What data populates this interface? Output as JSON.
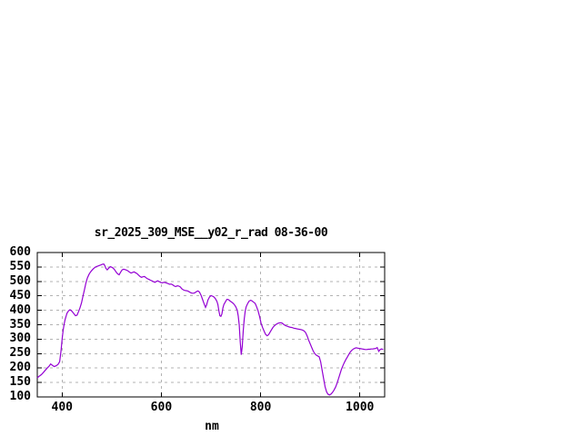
{
  "chart_data": {
    "type": "line",
    "title": "sr_2025_309_MSE__y02_r_rad 08-36-00",
    "xlabel": "nm",
    "ylabel": "",
    "xlim": [
      350,
      1050
    ],
    "ylim": [
      100,
      600
    ],
    "x_ticks": [
      400,
      600,
      800,
      1000
    ],
    "y_ticks": [
      100,
      150,
      200,
      250,
      300,
      350,
      400,
      450,
      500,
      550,
      600
    ],
    "grid": true,
    "legend": "none",
    "line_color": "#9400d3",
    "grid_color": "#b3b3b3",
    "frame_color": "#000000",
    "background_color": "#ffffff",
    "series": [
      {
        "points": [
          [
            350,
            166
          ],
          [
            354,
            172
          ],
          [
            358,
            177
          ],
          [
            362,
            184
          ],
          [
            366,
            192
          ],
          [
            370,
            200
          ],
          [
            374,
            207
          ],
          [
            377,
            214
          ],
          [
            380,
            210
          ],
          [
            384,
            205
          ],
          [
            388,
            208
          ],
          [
            392,
            213
          ],
          [
            395,
            222
          ],
          [
            398,
            262
          ],
          [
            400,
            300
          ],
          [
            402,
            330
          ],
          [
            404,
            352
          ],
          [
            406,
            368
          ],
          [
            408,
            380
          ],
          [
            410,
            390
          ],
          [
            413,
            398
          ],
          [
            416,
            402
          ],
          [
            419,
            398
          ],
          [
            423,
            390
          ],
          [
            427,
            381
          ],
          [
            430,
            383
          ],
          [
            433,
            395
          ],
          [
            436,
            408
          ],
          [
            439,
            425
          ],
          [
            442,
            448
          ],
          [
            445,
            470
          ],
          [
            448,
            495
          ],
          [
            451,
            512
          ],
          [
            454,
            524
          ],
          [
            457,
            532
          ],
          [
            460,
            538
          ],
          [
            463,
            544
          ],
          [
            466,
            548
          ],
          [
            469,
            551
          ],
          [
            472,
            553
          ],
          [
            475,
            555
          ],
          [
            478,
            557
          ],
          [
            481,
            559
          ],
          [
            484,
            560
          ],
          [
            486,
            555
          ],
          [
            488,
            546
          ],
          [
            491,
            540
          ],
          [
            494,
            546
          ],
          [
            497,
            551
          ],
          [
            500,
            549
          ],
          [
            503,
            546
          ],
          [
            506,
            540
          ],
          [
            509,
            532
          ],
          [
            512,
            526
          ],
          [
            515,
            523
          ],
          [
            518,
            532
          ],
          [
            521,
            540
          ],
          [
            524,
            542
          ],
          [
            527,
            541
          ],
          [
            530,
            539
          ],
          [
            533,
            536
          ],
          [
            536,
            532
          ],
          [
            539,
            529
          ],
          [
            542,
            531
          ],
          [
            545,
            533
          ],
          [
            548,
            530
          ],
          [
            551,
            527
          ],
          [
            554,
            522
          ],
          [
            557,
            517
          ],
          [
            560,
            514
          ],
          [
            563,
            516
          ],
          [
            566,
            517
          ],
          [
            569,
            513
          ],
          [
            572,
            509
          ],
          [
            575,
            507
          ],
          [
            578,
            504
          ],
          [
            581,
            502
          ],
          [
            584,
            499
          ],
          [
            587,
            497
          ],
          [
            590,
            500
          ],
          [
            593,
            502
          ],
          [
            596,
            499
          ],
          [
            599,
            496
          ],
          [
            602,
            495
          ],
          [
            605,
            497
          ],
          [
            608,
            496
          ],
          [
            611,
            494
          ],
          [
            614,
            492
          ],
          [
            617,
            490
          ],
          [
            620,
            491
          ],
          [
            623,
            488
          ],
          [
            626,
            484
          ],
          [
            629,
            482
          ],
          [
            632,
            485
          ],
          [
            635,
            484
          ],
          [
            638,
            481
          ],
          [
            641,
            475
          ],
          [
            644,
            471
          ],
          [
            647,
            469
          ],
          [
            650,
            468
          ],
          [
            653,
            467
          ],
          [
            656,
            464
          ],
          [
            659,
            461
          ],
          [
            662,
            459
          ],
          [
            665,
            459
          ],
          [
            668,
            461
          ],
          [
            671,
            465
          ],
          [
            674,
            467
          ],
          [
            677,
            463
          ],
          [
            680,
            452
          ],
          [
            683,
            438
          ],
          [
            686,
            423
          ],
          [
            689,
            410
          ],
          [
            691,
            418
          ],
          [
            694,
            436
          ],
          [
            697,
            446
          ],
          [
            700,
            451
          ],
          [
            703,
            449
          ],
          [
            706,
            446
          ],
          [
            709,
            440
          ],
          [
            712,
            431
          ],
          [
            714,
            420
          ],
          [
            716,
            398
          ],
          [
            718,
            381
          ],
          [
            720,
            379
          ],
          [
            722,
            387
          ],
          [
            724,
            408
          ],
          [
            726,
            420
          ],
          [
            729,
            429
          ],
          [
            732,
            438
          ],
          [
            735,
            437
          ],
          [
            738,
            433
          ],
          [
            741,
            429
          ],
          [
            744,
            425
          ],
          [
            747,
            420
          ],
          [
            750,
            412
          ],
          [
            753,
            400
          ],
          [
            755,
            380
          ],
          [
            757,
            348
          ],
          [
            759,
            290
          ],
          [
            761,
            246
          ],
          [
            763,
            275
          ],
          [
            765,
            330
          ],
          [
            767,
            370
          ],
          [
            769,
            398
          ],
          [
            771,
            412
          ],
          [
            774,
            424
          ],
          [
            777,
            432
          ],
          [
            780,
            435
          ],
          [
            783,
            432
          ],
          [
            786,
            428
          ],
          [
            789,
            424
          ],
          [
            792,
            412
          ],
          [
            795,
            398
          ],
          [
            798,
            378
          ],
          [
            801,
            355
          ],
          [
            804,
            340
          ],
          [
            807,
            328
          ],
          [
            810,
            317
          ],
          [
            813,
            312
          ],
          [
            816,
            315
          ],
          [
            819,
            324
          ],
          [
            822,
            333
          ],
          [
            825,
            341
          ],
          [
            828,
            347
          ],
          [
            831,
            351
          ],
          [
            834,
            354
          ],
          [
            837,
            356
          ],
          [
            840,
            357
          ],
          [
            843,
            356
          ],
          [
            846,
            352
          ],
          [
            849,
            348
          ],
          [
            852,
            346
          ],
          [
            855,
            344
          ],
          [
            858,
            342
          ],
          [
            861,
            341
          ],
          [
            864,
            340
          ],
          [
            867,
            338
          ],
          [
            870,
            337
          ],
          [
            873,
            336
          ],
          [
            876,
            335
          ],
          [
            879,
            334
          ],
          [
            882,
            333
          ],
          [
            885,
            331
          ],
          [
            888,
            328
          ],
          [
            891,
            322
          ],
          [
            894,
            310
          ],
          [
            897,
            296
          ],
          [
            900,
            284
          ],
          [
            903,
            271
          ],
          [
            906,
            259
          ],
          [
            909,
            250
          ],
          [
            912,
            245
          ],
          [
            915,
            242
          ],
          [
            918,
            239
          ],
          [
            921,
            222
          ],
          [
            924,
            193
          ],
          [
            927,
            163
          ],
          [
            930,
            135
          ],
          [
            933,
            117
          ],
          [
            936,
            109
          ],
          [
            939,
            107
          ],
          [
            942,
            110
          ],
          [
            945,
            116
          ],
          [
            948,
            124
          ],
          [
            951,
            134
          ],
          [
            954,
            147
          ],
          [
            957,
            163
          ],
          [
            960,
            180
          ],
          [
            963,
            196
          ],
          [
            966,
            209
          ],
          [
            969,
            220
          ],
          [
            972,
            230
          ],
          [
            975,
            239
          ],
          [
            978,
            248
          ],
          [
            981,
            256
          ],
          [
            984,
            262
          ],
          [
            987,
            266
          ],
          [
            990,
            269
          ],
          [
            993,
            270
          ],
          [
            996,
            269
          ],
          [
            999,
            268
          ],
          [
            1002,
            267
          ],
          [
            1005,
            266
          ],
          [
            1008,
            265
          ],
          [
            1011,
            264
          ],
          [
            1014,
            264
          ],
          [
            1017,
            265
          ],
          [
            1020,
            265
          ],
          [
            1023,
            266
          ],
          [
            1026,
            266
          ],
          [
            1029,
            267
          ],
          [
            1032,
            268
          ],
          [
            1035,
            271
          ],
          [
            1038,
            258
          ],
          [
            1041,
            264
          ],
          [
            1044,
            266
          ],
          [
            1047,
            264
          ]
        ]
      }
    ]
  }
}
